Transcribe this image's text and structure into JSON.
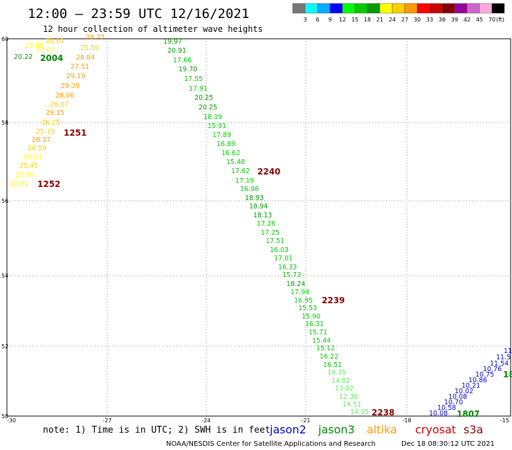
{
  "header": {
    "title": "12:00 – 23:59 UTC 12/16/2021",
    "subtitle": "12 hour collection of altimeter wave heights"
  },
  "colorbar": {
    "colors": [
      "#777777",
      "#00ffff",
      "#00aaff",
      "#0000ff",
      "#00ff00",
      "#00cc00",
      "#009900",
      "#ffff00",
      "#ffcc00",
      "#ff9900",
      "#ff0000",
      "#cc0000",
      "#880000",
      "#990099",
      "#cc66cc",
      "#ffaadd",
      "#000000"
    ],
    "labels": [
      "3",
      "6",
      "9",
      "12",
      "15",
      "18",
      "21",
      "24",
      "27",
      "30",
      "33",
      "36",
      "39",
      "42",
      "45",
      "70"
    ],
    "unit": "(ft)"
  },
  "axes": {
    "x_ticks": [
      "-30",
      "-27",
      "-24",
      "-21",
      "-18",
      "-15"
    ],
    "y_ticks": [
      "50",
      "52",
      "54",
      "56",
      "58",
      "60"
    ]
  },
  "footer": {
    "note": "note:  1) Time is in UTC;  2) SWH is in feet",
    "satellites": [
      {
        "name": "jason2",
        "color": "#0000cc"
      },
      {
        "name": "jason3",
        "color": "#008800"
      },
      {
        "name": "altika",
        "color": "#ff9900"
      },
      {
        "name": "cryosat",
        "color": "#cc0000"
      },
      {
        "name": "s3a",
        "color": "#880000"
      }
    ],
    "credit": "NOAA/NESDIS Center for Satellite Applications and Research",
    "timestamp": "Dec 18 08:30:12 UTC 2021"
  },
  "tracks": {
    "track_a": {
      "values": [
        {
          "v": "28.27",
          "c": "#ff9900"
        },
        {
          "v": "28.61",
          "c": "#ffcc00"
        },
        {
          "v": "25.50",
          "c": "#ffcc00"
        },
        {
          "v": "23.99",
          "c": "#ffff00"
        },
        {
          "v": "23.80",
          "c": "#ffff00"
        },
        {
          "v": "20.22",
          "c": "#009900"
        },
        {
          "v": "28.84",
          "c": "#ff9900"
        },
        {
          "v": "27.51",
          "c": "#ff9900"
        },
        {
          "v": "29.19",
          "c": "#ff9900"
        },
        {
          "v": "29.39",
          "c": "#ff9900"
        },
        {
          "v": "28.06",
          "c": "#ff9900"
        },
        {
          "v": "26.07",
          "c": "#ffcc00"
        },
        {
          "v": "29.15",
          "c": "#ff9900"
        },
        {
          "v": "26.25",
          "c": "#ffcc00"
        },
        {
          "v": "25.19",
          "c": "#ffcc00"
        },
        {
          "v": "28.37",
          "c": "#ff9900"
        },
        {
          "v": "26.59",
          "c": "#ffcc00"
        },
        {
          "v": "23.81",
          "c": "#ffff00"
        },
        {
          "v": "25.45",
          "c": "#ffcc00"
        },
        {
          "v": "23.70",
          "c": "#ffff00"
        },
        {
          "v": "22.80",
          "c": "#ffff00"
        }
      ],
      "time_labels": [
        {
          "t": "2004",
          "c": "#008800"
        },
        {
          "t": "1251",
          "c": "#880000"
        },
        {
          "t": "1252",
          "c": "#880000"
        }
      ]
    },
    "track_b": {
      "values": [
        {
          "v": "19.97",
          "c": "#009900"
        },
        {
          "v": "20.91",
          "c": "#009900"
        },
        {
          "v": "17.66",
          "c": "#00cc00"
        },
        {
          "v": "19.70",
          "c": "#009900"
        },
        {
          "v": "17.55",
          "c": "#00cc00"
        },
        {
          "v": "17.91",
          "c": "#00cc00"
        },
        {
          "v": "20.25",
          "c": "#009900"
        },
        {
          "v": "20.25",
          "c": "#009900"
        },
        {
          "v": "18.19",
          "c": "#00cc00"
        },
        {
          "v": "15.91",
          "c": "#00cc00"
        },
        {
          "v": "17.89",
          "c": "#00cc00"
        },
        {
          "v": "16.89",
          "c": "#00cc00"
        },
        {
          "v": "16.62",
          "c": "#00cc00"
        },
        {
          "v": "15.48",
          "c": "#00cc00"
        },
        {
          "v": "17.62",
          "c": "#00cc00"
        },
        {
          "v": "17.19",
          "c": "#00cc00"
        },
        {
          "v": "16.98",
          "c": "#00cc00"
        },
        {
          "v": "18.93",
          "c": "#009900"
        },
        {
          "v": "18.94",
          "c": "#009900"
        },
        {
          "v": "18.13",
          "c": "#009900"
        },
        {
          "v": "17.26",
          "c": "#00cc00"
        },
        {
          "v": "17.25",
          "c": "#00cc00"
        },
        {
          "v": "17.51",
          "c": "#00cc00"
        },
        {
          "v": "16.03",
          "c": "#00cc00"
        },
        {
          "v": "17.01",
          "c": "#00cc00"
        },
        {
          "v": "16.33",
          "c": "#00cc00"
        },
        {
          "v": "15.73",
          "c": "#00cc00"
        },
        {
          "v": "18.24",
          "c": "#009900"
        },
        {
          "v": "17.94",
          "c": "#00cc00"
        },
        {
          "v": "16.95",
          "c": "#00cc00"
        },
        {
          "v": "15.53",
          "c": "#00cc00"
        },
        {
          "v": "15.90",
          "c": "#00cc00"
        },
        {
          "v": "16.31",
          "c": "#00cc00"
        },
        {
          "v": "15.71",
          "c": "#00cc00"
        },
        {
          "v": "15.44",
          "c": "#00cc00"
        },
        {
          "v": "15.12",
          "c": "#00cc00"
        },
        {
          "v": "16.22",
          "c": "#00cc00"
        },
        {
          "v": "16.51",
          "c": "#00cc00"
        },
        {
          "v": "14.31",
          "c": "#55ee55"
        },
        {
          "v": "14.82",
          "c": "#55ee55"
        },
        {
          "v": "13.02",
          "c": "#55ee55"
        },
        {
          "v": "12.30",
          "c": "#55ee55"
        },
        {
          "v": "14.51",
          "c": "#55ee55"
        },
        {
          "v": "14.35",
          "c": "#55ee55"
        }
      ],
      "time_labels": [
        {
          "t": "2240",
          "c": "#880000"
        },
        {
          "t": "2239",
          "c": "#880000"
        },
        {
          "t": "2238",
          "c": "#880000"
        }
      ]
    },
    "track_c": {
      "values": [
        {
          "v": "10.08",
          "c": "#0000cc"
        },
        {
          "v": "10.58",
          "c": "#0000cc"
        },
        {
          "v": "10.70",
          "c": "#0000cc"
        },
        {
          "v": "10.08",
          "c": "#0000cc"
        },
        {
          "v": "10.02",
          "c": "#0000cc"
        },
        {
          "v": "10.21",
          "c": "#0000cc"
        },
        {
          "v": "10.86",
          "c": "#0000cc"
        },
        {
          "v": "10.75",
          "c": "#0000cc"
        },
        {
          "v": "10.76",
          "c": "#0000cc"
        },
        {
          "v": "11.54",
          "c": "#0000cc"
        },
        {
          "v": "11.5",
          "c": "#0000cc"
        },
        {
          "v": "11",
          "c": "#0000cc"
        }
      ],
      "time_labels": [
        {
          "t": "1807",
          "c": "#008800"
        },
        {
          "t": "18",
          "c": "#008800"
        }
      ]
    }
  }
}
